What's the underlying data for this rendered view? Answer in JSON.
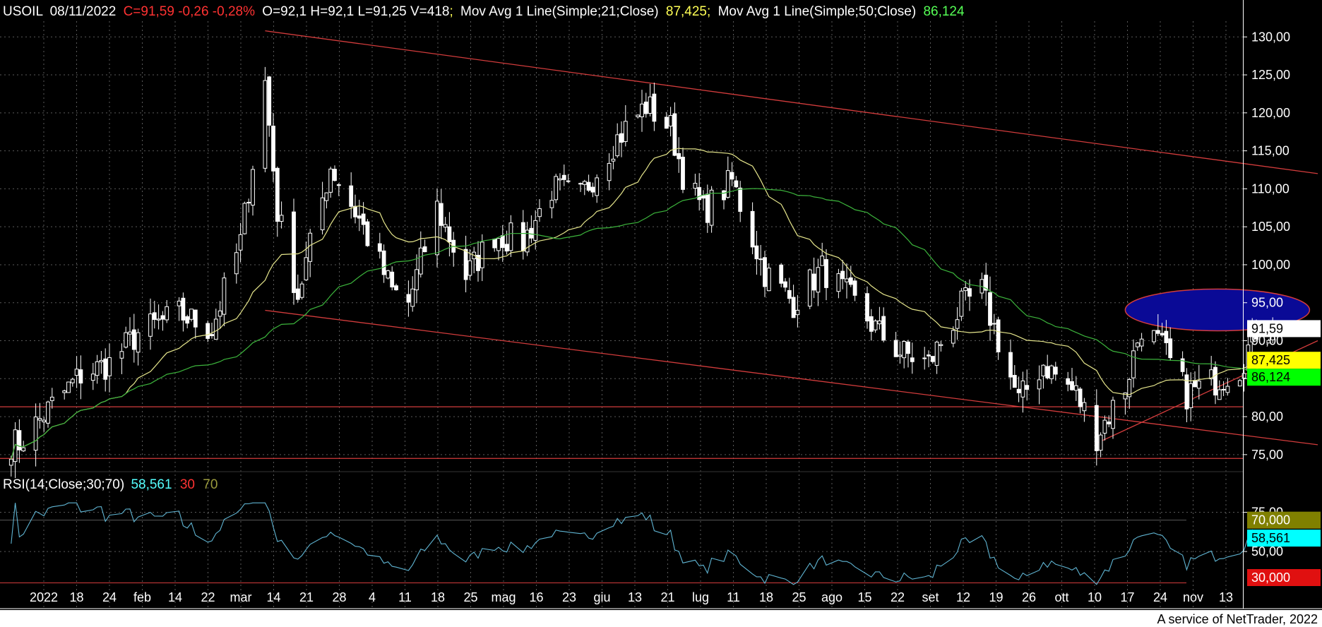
{
  "header": {
    "symbol": "USOIL",
    "date": "08/11/2022",
    "close_text": "C=91,59 -0,26 -0,28%",
    "ohlcv_text": "O=92,1 H=92,1 L=91,25 V=418",
    "ma21_label": "Mov Avg 1 Line(Simple;21;Close)",
    "ma21_value": "87,425",
    "ma50_label": "Mov Avg 1 Line(Simple;50;Close)",
    "ma50_value": "86,124",
    "sep": ";"
  },
  "rsi_header": {
    "label": "RSI(14;Close;30;70)",
    "value": "58,561",
    "low": "30",
    "high": "70"
  },
  "footer": "A service of NetTrader, 2022",
  "colors": {
    "background": "#000000",
    "grid": "#5a5a5a",
    "candle_up": "#ffffff",
    "candle_down": "#ffffff",
    "ma21": "#e6e68c",
    "ma50": "#3cb43c",
    "trendline": "#d23c3c",
    "rsi_line": "#5fb4d2",
    "ellipse_fill": "#0a0a96",
    "ellipse_stroke": "#d23c3c",
    "text_white": "#ffffff",
    "text_red": "#ff3232",
    "text_yellow": "#ffff55",
    "text_green": "#55ff55",
    "text_cyan": "#55ffff",
    "text_olive": "#9a9a3c"
  },
  "chart_data": {
    "type": "candlestick",
    "symbol": "USOIL",
    "price_axis": {
      "ticks": [
        "130,00",
        "125,00",
        "120,00",
        "115,00",
        "110,00",
        "105,00",
        "100,00",
        "95,00",
        "90,00",
        "85,00",
        "80,00",
        "75,00"
      ],
      "ylim": [
        73.5,
        133
      ]
    },
    "rsi_axis": {
      "ticks": [
        "75,00",
        "50,00"
      ],
      "ylim": [
        28,
        82
      ]
    },
    "x_labels": [
      "2022",
      "18",
      "24",
      "feb",
      "14",
      "22",
      "mar",
      "14",
      "21",
      "28",
      "4",
      "11",
      "18",
      "25",
      "mag",
      "16",
      "23",
      "giu",
      "13",
      "21",
      "lug",
      "11",
      "18",
      "25",
      "ago",
      "15",
      "22",
      "set",
      "12",
      "19",
      "26",
      "ott",
      "10",
      "17",
      "24",
      "nov",
      "13"
    ],
    "price_tags": [
      {
        "value": "91,59",
        "price": 91.59,
        "bg": "#ffffff",
        "fg": "#000000"
      },
      {
        "value": "87,425",
        "price": 87.425,
        "bg": "#ffff00",
        "fg": "#000000"
      },
      {
        "value": "86,124",
        "price": 86.124,
        "bg": "#00ff00",
        "fg": "#000000"
      }
    ],
    "rsi_tags": [
      {
        "value": "70,000",
        "rsi": 70,
        "bg": "#808000",
        "fg": "#ffffff"
      },
      {
        "value": "58,561",
        "rsi": 58.561,
        "bg": "#00ffff",
        "fg": "#000000"
      },
      {
        "value": "30,000",
        "rsi": 30,
        "bg": "#e01010",
        "fg": "#ffffff"
      }
    ],
    "last_close": 91.59,
    "ma21_last": 87.425,
    "ma50_last": 86.124,
    "rsi_last": 58.561,
    "rsi_levels": [
      30,
      70
    ],
    "horizontal_levels": [
      81.3,
      74.5
    ],
    "trendlines": [
      {
        "name": "upper-channel",
        "from": {
          "date": "2022-03-07",
          "price": 130.8
        },
        "to": {
          "date": "2022-11-19",
          "price": 112.0
        }
      },
      {
        "name": "lower-channel",
        "from": {
          "date": "2022-03-07",
          "price": 94.0
        },
        "to": {
          "date": "2022-11-19",
          "price": 76.3
        }
      },
      {
        "name": "rising-support",
        "from": {
          "date": "2022-09-26",
          "price": 76.5
        },
        "to": {
          "date": "2022-11-19",
          "price": 90.0
        }
      }
    ],
    "resistance_zone": {
      "date_from": "2022-10-03",
      "date_to": "2022-11-17",
      "price_low": 91.3,
      "price_high": 96.8
    },
    "anchors": [
      {
        "d": "2022-01-06",
        "p": 76.5
      },
      {
        "d": "2022-01-14",
        "p": 81.5
      },
      {
        "d": "2022-01-21",
        "p": 85.5
      },
      {
        "d": "2022-01-28",
        "p": 87.0
      },
      {
        "d": "2022-02-04",
        "p": 91.0
      },
      {
        "d": "2022-02-14",
        "p": 93.5
      },
      {
        "d": "2022-02-22",
        "p": 91.5
      },
      {
        "d": "2022-03-01",
        "p": 103.0
      },
      {
        "d": "2022-03-07",
        "p": 124.0
      },
      {
        "d": "2022-03-10",
        "p": 107.0
      },
      {
        "d": "2022-03-15",
        "p": 96.0
      },
      {
        "d": "2022-03-23",
        "p": 113.0
      },
      {
        "d": "2022-03-30",
        "p": 106.0
      },
      {
        "d": "2022-04-07",
        "p": 96.5
      },
      {
        "d": "2022-04-11",
        "p": 95.0
      },
      {
        "d": "2022-04-18",
        "p": 107.5
      },
      {
        "d": "2022-04-25",
        "p": 98.5
      },
      {
        "d": "2022-05-02",
        "p": 104.0
      },
      {
        "d": "2022-05-09",
        "p": 103.0
      },
      {
        "d": "2022-05-16",
        "p": 110.0
      },
      {
        "d": "2022-05-23",
        "p": 109.0
      },
      {
        "d": "2022-05-31",
        "p": 116.0
      },
      {
        "d": "2022-06-08",
        "p": 121.0
      },
      {
        "d": "2022-06-14",
        "p": 118.0
      },
      {
        "d": "2022-06-17",
        "p": 112.0
      },
      {
        "d": "2022-06-22",
        "p": 107.0
      },
      {
        "d": "2022-06-29",
        "p": 111.0
      },
      {
        "d": "2022-07-07",
        "p": 99.0
      },
      {
        "d": "2022-07-14",
        "p": 95.0
      },
      {
        "d": "2022-07-21",
        "p": 99.5
      },
      {
        "d": "2022-07-28",
        "p": 95.5
      },
      {
        "d": "2022-08-04",
        "p": 91.0
      },
      {
        "d": "2022-08-09",
        "p": 88.5
      },
      {
        "d": "2022-08-16",
        "p": 87.0
      },
      {
        "d": "2022-08-24",
        "p": 94.5
      },
      {
        "d": "2022-08-29",
        "p": 96.5
      },
      {
        "d": "2022-09-07",
        "p": 82.0
      },
      {
        "d": "2022-09-13",
        "p": 87.0
      },
      {
        "d": "2022-09-21",
        "p": 83.0
      },
      {
        "d": "2022-09-26",
        "p": 77.5
      },
      {
        "d": "2022-10-03",
        "p": 84.0
      },
      {
        "d": "2022-10-07",
        "p": 92.0
      },
      {
        "d": "2022-10-12",
        "p": 89.0
      },
      {
        "d": "2022-10-18",
        "p": 83.0
      },
      {
        "d": "2022-10-24",
        "p": 84.5
      },
      {
        "d": "2022-10-31",
        "p": 86.5
      },
      {
        "d": "2022-11-04",
        "p": 91.5
      },
      {
        "d": "2022-11-08",
        "p": 91.59
      }
    ]
  }
}
